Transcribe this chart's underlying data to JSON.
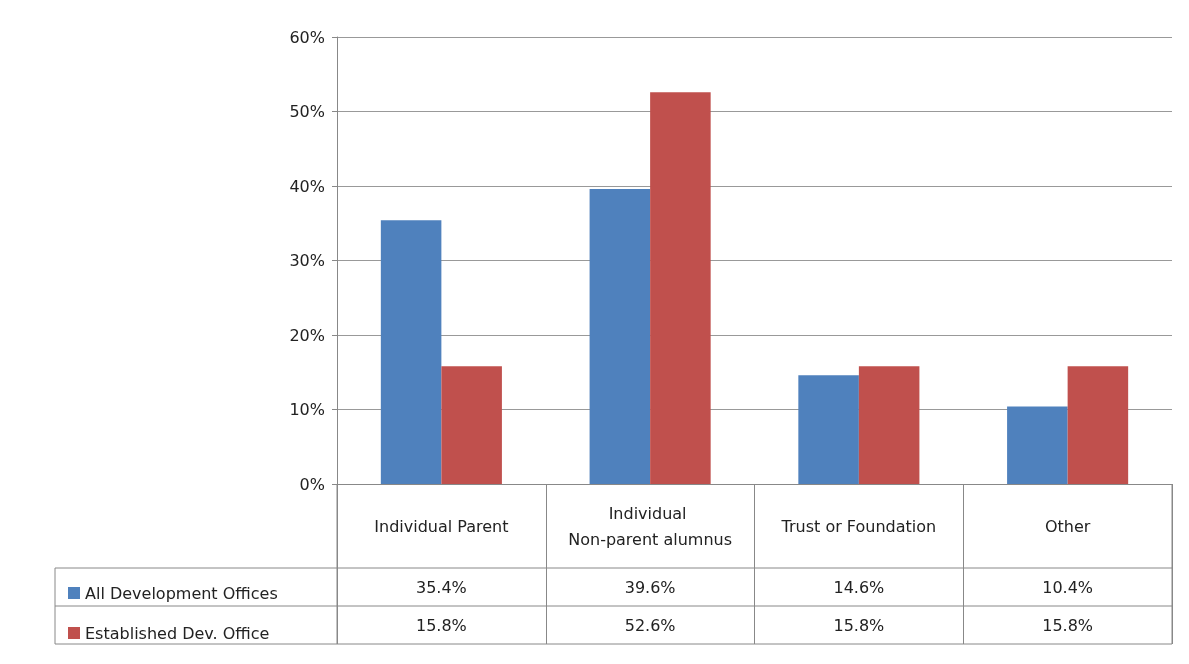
{
  "chart_data": {
    "type": "bar",
    "categories": [
      "Individual Parent",
      "Individual Non-parent alumnus",
      "Trust or Foundation",
      "Other"
    ],
    "series": [
      {
        "name": "All Development Offices",
        "color": "#4f81bd",
        "values": [
          35.4,
          39.6,
          14.6,
          10.4
        ],
        "value_labels": [
          "35.4%",
          "39.6%",
          "14.6%",
          "10.4%"
        ]
      },
      {
        "name": "Established Dev. Office",
        "color": "#c0504d",
        "values": [
          15.8,
          52.6,
          15.8,
          15.8
        ],
        "value_labels": [
          "15.8%",
          "52.6%",
          "15.8%",
          "15.8%"
        ]
      }
    ],
    "ylim": [
      0,
      60
    ],
    "yticks": [
      {
        "value": 0,
        "label": "0%"
      },
      {
        "value": 10,
        "label": "10%"
      },
      {
        "value": 20,
        "label": "20%"
      },
      {
        "value": 30,
        "label": "30%"
      },
      {
        "value": 40,
        "label": "40%"
      },
      {
        "value": 50,
        "label": "50%"
      },
      {
        "value": 60,
        "label": "60%"
      }
    ],
    "grid": "y",
    "legend": "bottom left"
  }
}
